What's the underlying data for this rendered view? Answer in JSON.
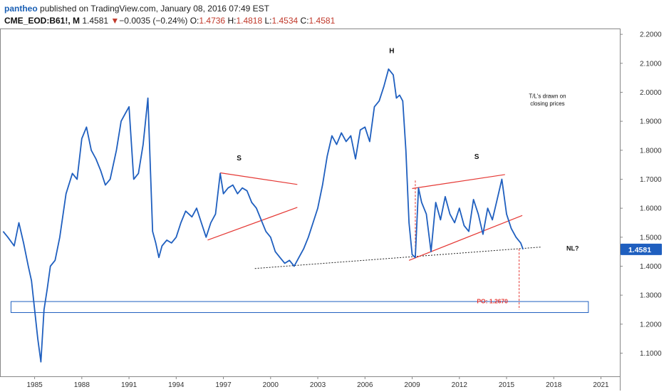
{
  "header": {
    "author": "pantheo",
    "published_text": "published on TradingView.com, January 08, 2016 07:49 EST",
    "symbol": "CME_EOD:B61!, M",
    "last": "1.4581",
    "change_arrow": "▼",
    "change": "−0.0035 (−0.24%)",
    "o_label": "O:",
    "o_value": "1.4736",
    "h_label": "H:",
    "h_value": "1.4818",
    "l_label": "L:",
    "l_value": "1.4534",
    "c_label": "C:",
    "c_value": "1.4581"
  },
  "colors": {
    "price_line": "#1f5fbf",
    "trendline": "#e53935",
    "neckline": "#222222",
    "target_line": "#e53935",
    "box": "#1f5fbf",
    "price_tag": "#1f5fbf"
  },
  "chart_data": {
    "type": "line",
    "title": "",
    "xlabel": "",
    "ylabel": "",
    "xlim": [
      1982.8,
      2022.2
    ],
    "ylim": [
      1.02,
      2.22
    ],
    "x_ticks": [
      "1985",
      "1988",
      "1991",
      "1994",
      "1997",
      "2000",
      "2003",
      "2006",
      "2009",
      "2012",
      "2015",
      "2018",
      "2021"
    ],
    "y_ticks": [
      "2.2000",
      "2.1000",
      "2.0000",
      "1.9000",
      "1.8000",
      "1.7000",
      "1.6000",
      "1.5000",
      "1.4000",
      "1.3000",
      "1.2000",
      "1.1000"
    ],
    "last_price_label": "1.4581",
    "series": [
      {
        "x": [
          1983.0,
          1983.3,
          1983.7,
          1984.0,
          1984.3,
          1984.6,
          1984.8,
          1985.0,
          1985.2,
          1985.4,
          1985.6,
          1985.8,
          1986.0,
          1986.3,
          1986.6,
          1987.0,
          1987.4,
          1987.7,
          1988.0,
          1988.3,
          1988.6,
          1988.9,
          1989.2,
          1989.5,
          1989.8,
          1990.2,
          1990.5,
          1990.8,
          1991.0,
          1991.3,
          1991.6,
          1991.9,
          1992.2,
          1992.5,
          1992.7,
          1992.9,
          1993.1,
          1993.4,
          1993.7,
          1994.0,
          1994.3,
          1994.6,
          1995.0,
          1995.3,
          1995.6,
          1995.9,
          1996.2,
          1996.5,
          1996.8,
          1997.0,
          1997.3,
          1997.6,
          1997.9,
          1998.2,
          1998.5,
          1998.8,
          1999.1,
          1999.4,
          1999.7,
          2000.0,
          2000.3,
          2000.6,
          2000.9,
          2001.2,
          2001.5,
          2001.8,
          2002.1,
          2002.4,
          2002.7,
          2003.0,
          2003.3,
          2003.6,
          2003.9,
          2004.2,
          2004.5,
          2004.8,
          2005.1,
          2005.4,
          2005.7,
          2006.0,
          2006.3,
          2006.6,
          2006.9,
          2007.2,
          2007.5,
          2007.8,
          2008.0,
          2008.2,
          2008.4,
          2008.6,
          2008.8,
          2009.0,
          2009.2,
          2009.4,
          2009.6,
          2009.9,
          2010.2,
          2010.5,
          2010.8,
          2011.1,
          2011.4,
          2011.7,
          2012.0,
          2012.3,
          2012.6,
          2012.9,
          2013.2,
          2013.5,
          2013.8,
          2014.1,
          2014.4,
          2014.7,
          2015.0,
          2015.3,
          2015.6,
          2015.9,
          2016.05
        ],
        "y": [
          1.52,
          1.5,
          1.47,
          1.55,
          1.48,
          1.4,
          1.35,
          1.25,
          1.15,
          1.07,
          1.25,
          1.32,
          1.4,
          1.42,
          1.5,
          1.65,
          1.72,
          1.7,
          1.84,
          1.88,
          1.8,
          1.77,
          1.73,
          1.68,
          1.7,
          1.8,
          1.9,
          1.93,
          1.95,
          1.7,
          1.72,
          1.82,
          1.98,
          1.52,
          1.48,
          1.43,
          1.47,
          1.49,
          1.48,
          1.5,
          1.55,
          1.59,
          1.57,
          1.6,
          1.55,
          1.5,
          1.55,
          1.58,
          1.72,
          1.65,
          1.67,
          1.68,
          1.65,
          1.67,
          1.66,
          1.62,
          1.6,
          1.56,
          1.52,
          1.5,
          1.45,
          1.43,
          1.41,
          1.42,
          1.4,
          1.43,
          1.46,
          1.5,
          1.55,
          1.6,
          1.68,
          1.78,
          1.85,
          1.82,
          1.86,
          1.83,
          1.85,
          1.77,
          1.87,
          1.88,
          1.83,
          1.95,
          1.97,
          2.02,
          2.08,
          2.06,
          1.98,
          1.99,
          1.97,
          1.8,
          1.55,
          1.44,
          1.43,
          1.67,
          1.62,
          1.58,
          1.45,
          1.62,
          1.56,
          1.64,
          1.58,
          1.55,
          1.6,
          1.54,
          1.52,
          1.63,
          1.58,
          1.51,
          1.6,
          1.56,
          1.63,
          1.7,
          1.58,
          1.53,
          1.5,
          1.48,
          1.4581
        ]
      }
    ],
    "annotations": {
      "h": "H",
      "s_left": "S",
      "s_right": "S",
      "nl": "NL?",
      "note_line1": "T/L's drawn on",
      "note_line2": "closing prices",
      "po": "PO: 1.2670"
    },
    "drawings": {
      "neckline": [
        [
          1999.0,
          1.392
        ],
        [
          2017.2,
          1.466
        ]
      ],
      "left_shoulder_upper": [
        [
          1996.8,
          1.722
        ],
        [
          2001.7,
          1.682
        ]
      ],
      "left_shoulder_lower": [
        [
          1996.0,
          1.49
        ],
        [
          2001.7,
          1.603
        ]
      ],
      "right_shoulder_upper": [
        [
          2009.0,
          1.668
        ],
        [
          2014.9,
          1.716
        ]
      ],
      "right_shoulder_lower": [
        [
          2008.8,
          1.42
        ],
        [
          2016.0,
          1.575
        ]
      ],
      "left_vertical": [
        [
          2009.2,
          1.43
        ],
        [
          2009.2,
          1.7
        ]
      ],
      "target_vertical": [
        [
          2015.8,
          1.46
        ],
        [
          2015.8,
          1.25
        ]
      ],
      "target_box": [
        [
          1983.5,
          1.24
        ],
        [
          2020.2,
          1.278
        ]
      ]
    }
  }
}
